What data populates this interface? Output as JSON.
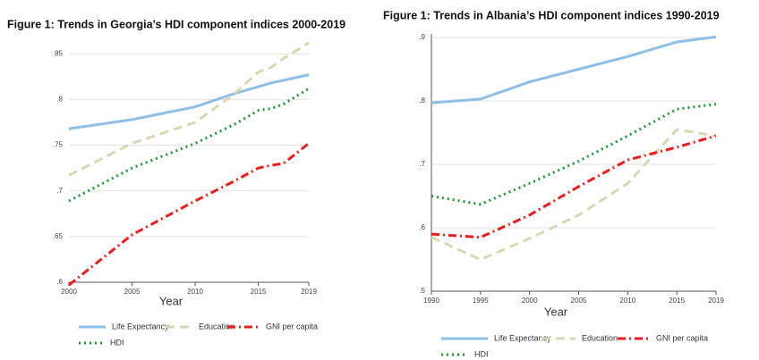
{
  "chart_data": [
    {
      "type": "line",
      "title": "Figure 1: Trends in Georgia’s HDI component indices 2000-2019",
      "x_label": "Year",
      "x": [
        2000,
        2005,
        2010,
        2013,
        2015,
        2016,
        2017,
        2019
      ],
      "series": [
        {
          "name": "Life Expectancy",
          "color": "#8dbfe8",
          "style": "solid",
          "values": [
            0.768,
            0.778,
            0.792,
            0.806,
            0.814,
            0.818,
            0.821,
            0.827
          ]
        },
        {
          "name": "Education",
          "color": "#ddd6b2",
          "style": "dashed",
          "values": [
            0.717,
            0.752,
            0.775,
            0.805,
            0.83,
            0.835,
            0.845,
            0.862
          ]
        },
        {
          "name": "GNI per capita",
          "color": "#ee1c1c",
          "style": "dashdot",
          "values": [
            0.597,
            0.652,
            0.689,
            0.71,
            0.725,
            0.728,
            0.73,
            0.752
          ]
        },
        {
          "name": "HDI",
          "color": "#1f9a2f",
          "style": "dotted",
          "values": [
            0.689,
            0.725,
            0.752,
            0.772,
            0.788,
            0.79,
            0.795,
            0.812
          ]
        }
      ],
      "xlim": [
        2000,
        2019
      ],
      "xticks": [
        2000,
        2005,
        2010,
        2015,
        2019
      ],
      "ylim": [
        0.6,
        0.86
      ],
      "yticks": [
        {
          "value": 0.6,
          "label": ".6"
        },
        {
          "value": 0.65,
          "label": ".65"
        },
        {
          "value": 0.7,
          "label": ".7"
        },
        {
          "value": 0.75,
          "label": ".75"
        },
        {
          "value": 0.8,
          "label": ".8"
        },
        {
          "value": 0.85,
          "label": ".85"
        }
      ],
      "grid": true
    },
    {
      "type": "line",
      "title": "Figure 1: Trends in Albania’s HDI component indices 1990-2019",
      "x_label": "Year",
      "x": [
        1990,
        1995,
        2000,
        2005,
        2010,
        2015,
        2019
      ],
      "series": [
        {
          "name": "Life Expectancy",
          "color": "#8dbfe8",
          "style": "solid",
          "values": [
            0.797,
            0.803,
            0.83,
            0.85,
            0.87,
            0.893,
            0.901
          ]
        },
        {
          "name": "Education",
          "color": "#ddd6b2",
          "style": "dashed",
          "values": [
            0.585,
            0.55,
            0.583,
            0.62,
            0.67,
            0.755,
            0.745
          ]
        },
        {
          "name": "GNI per capita",
          "color": "#ee1c1c",
          "style": "dashdot",
          "values": [
            0.59,
            0.585,
            0.62,
            0.665,
            0.707,
            0.727,
            0.745
          ]
        },
        {
          "name": "HDI",
          "color": "#1f9a2f",
          "style": "dotted",
          "values": [
            0.65,
            0.637,
            0.67,
            0.705,
            0.745,
            0.787,
            0.795
          ]
        }
      ],
      "xlim": [
        1990,
        2019
      ],
      "xticks": [
        1990,
        1995,
        2000,
        2005,
        2010,
        2015,
        2019
      ],
      "ylim": [
        0.5,
        0.9
      ],
      "yticks": [
        {
          "value": 0.5,
          "label": ".5"
        },
        {
          "value": 0.6,
          "label": ".6"
        },
        {
          "value": 0.7,
          "label": ".7"
        },
        {
          "value": 0.8,
          "label": ".8"
        },
        {
          "value": 0.9,
          "label": ".9"
        }
      ],
      "grid": true
    }
  ]
}
